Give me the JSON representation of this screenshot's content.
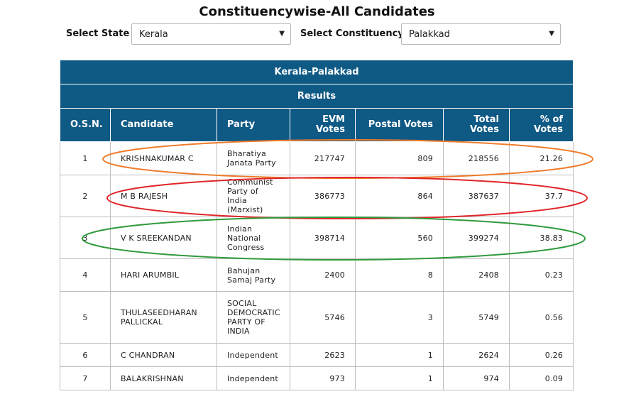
{
  "page": {
    "title": "Constituencywise-All Candidates"
  },
  "filters": {
    "state_label": "Select State",
    "state_value": "Kerala",
    "constituency_label": "Select Constituency",
    "constituency_value": "Palakkad"
  },
  "table": {
    "heading": "Kerala-Palakkad",
    "subheading": "Results",
    "columns": [
      "O.S.N.",
      "Candidate",
      "Party",
      "EVM Votes",
      "Postal Votes",
      "Total Votes",
      "% of Votes"
    ],
    "rows": [
      {
        "sn": "1",
        "candidate": "KRISHNAKUMAR C",
        "party": "Bharatiya Janata Party",
        "evm": "217747",
        "postal": "809",
        "total": "218556",
        "pct": "21.26"
      },
      {
        "sn": "2",
        "candidate": "M B RAJESH",
        "party": "Communist Party of India (Marxist)",
        "evm": "386773",
        "postal": "864",
        "total": "387637",
        "pct": "37.7"
      },
      {
        "sn": "3",
        "candidate": "V K SREEKANDAN",
        "party": "Indian National Congress",
        "evm": "398714",
        "postal": "560",
        "total": "399274",
        "pct": "38.83"
      },
      {
        "sn": "4",
        "candidate": "HARI ARUMBIL",
        "party": "Bahujan Samaj Party",
        "evm": "2400",
        "postal": "8",
        "total": "2408",
        "pct": "0.23"
      },
      {
        "sn": "5",
        "candidate": "THULASEEDHARAN PALLICKAL",
        "party": "SOCIAL DEMOCRATIC PARTY OF INDIA",
        "evm": "5746",
        "postal": "3",
        "total": "5749",
        "pct": "0.56"
      },
      {
        "sn": "6",
        "candidate": "C CHANDRAN",
        "party": "Independent",
        "evm": "2623",
        "postal": "1",
        "total": "2624",
        "pct": "0.26"
      },
      {
        "sn": "7",
        "candidate": "BALAKRISHNAN",
        "party": "Independent",
        "evm": "973",
        "postal": "1",
        "total": "974",
        "pct": "0.09"
      }
    ]
  },
  "highlights": [
    {
      "row": "1",
      "color": "#f07c2b"
    },
    {
      "row": "2",
      "color": "#e0262a"
    },
    {
      "row": "3",
      "color": "#2f9a3c"
    }
  ]
}
